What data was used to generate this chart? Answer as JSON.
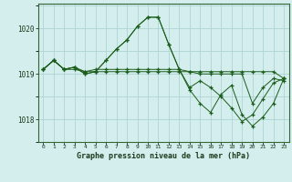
{
  "title": "Graphe pression niveau de la mer (hPa)",
  "yticks": [
    1018,
    1019,
    1020
  ],
  "ylim": [
    1017.55,
    1020.55
  ],
  "xlim": [
    -0.5,
    23.5
  ],
  "bg_color": "#d4eeee",
  "grid_color": "#aed4d4",
  "line_color": "#1a5c1a",
  "series": [
    [
      1019.1,
      1019.3,
      1019.1,
      1019.1,
      1019.05,
      1019.05,
      1019.05,
      1019.05,
      1019.05,
      1019.05,
      1019.05,
      1019.05,
      1019.05,
      1019.05,
      1019.05,
      1019.05,
      1019.05,
      1019.05,
      1019.05,
      1019.05,
      1019.05,
      1019.05,
      1019.05,
      1018.9
    ],
    [
      1019.1,
      1019.3,
      1019.1,
      1019.15,
      1019.0,
      1019.05,
      1019.3,
      1019.55,
      1019.75,
      1020.05,
      1020.25,
      1020.25,
      1019.65,
      1019.1,
      1018.65,
      1018.35,
      1018.15,
      1018.55,
      1018.75,
      1018.1,
      1017.85,
      1018.05,
      1018.35,
      1018.9
    ],
    [
      1019.1,
      1019.3,
      1019.1,
      1019.15,
      1019.0,
      1019.05,
      1019.3,
      1019.55,
      1019.75,
      1020.05,
      1020.25,
      1020.25,
      1019.65,
      1019.1,
      1018.7,
      1018.85,
      1018.7,
      1018.5,
      1018.25,
      1017.95,
      1018.1,
      1018.45,
      1018.8,
      1018.9
    ],
    [
      1019.1,
      1019.3,
      1019.1,
      1019.15,
      1019.05,
      1019.1,
      1019.1,
      1019.1,
      1019.1,
      1019.1,
      1019.1,
      1019.1,
      1019.1,
      1019.1,
      1019.05,
      1019.0,
      1019.0,
      1019.0,
      1019.0,
      1019.0,
      1018.35,
      1018.7,
      1018.9,
      1018.85
    ]
  ]
}
